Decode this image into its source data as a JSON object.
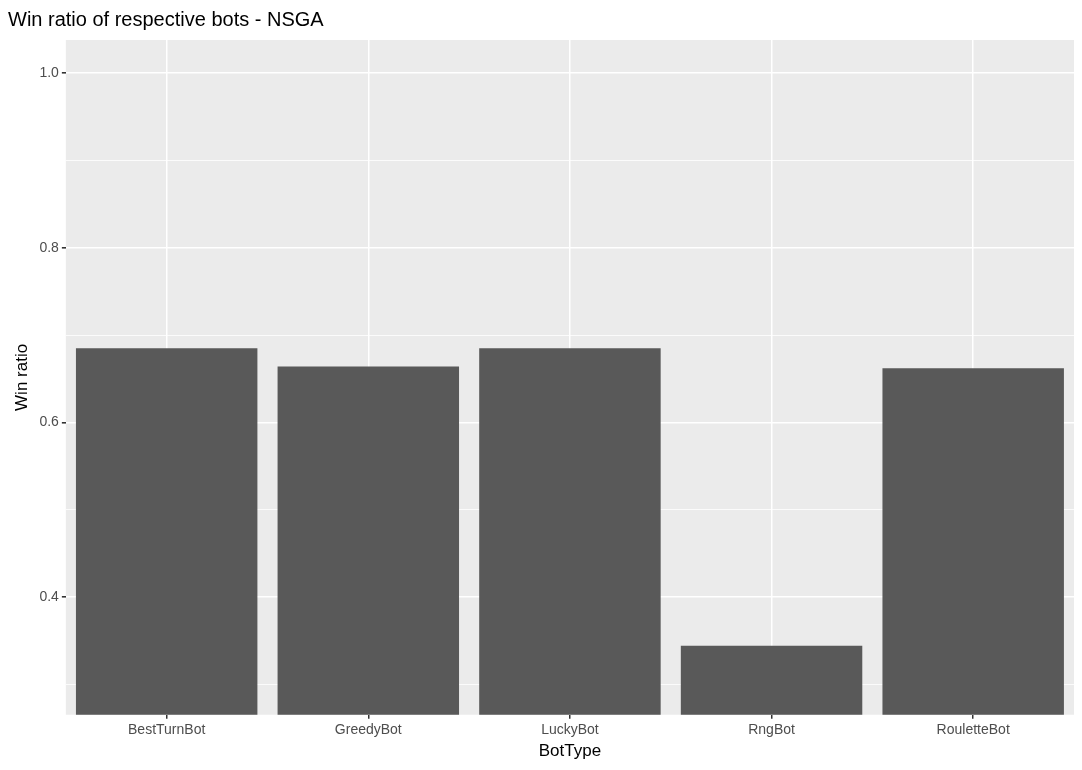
{
  "chart_data": {
    "type": "bar",
    "title": "Win ratio of respective bots - NSGA",
    "xlabel": "BotType",
    "ylabel": "Win ratio",
    "categories": [
      "BestTurnBot",
      "GreedyBot",
      "LuckyBot",
      "RngBot",
      "RouletteBot"
    ],
    "values": [
      0.685,
      0.664,
      0.685,
      0.344,
      0.662
    ],
    "color": "#595959",
    "ylim": [
      0.265,
      1.038
    ],
    "yticks": [
      {
        "value": 0.3,
        "label": null
      },
      0.4,
      {
        "value": 0.5,
        "label": null
      },
      0.6,
      {
        "value": 0.7,
        "label": null
      },
      0.8,
      {
        "value": 0.9,
        "label": null
      },
      {
        "value": 1,
        "label": "1.0"
      }
    ],
    "grid": true
  }
}
